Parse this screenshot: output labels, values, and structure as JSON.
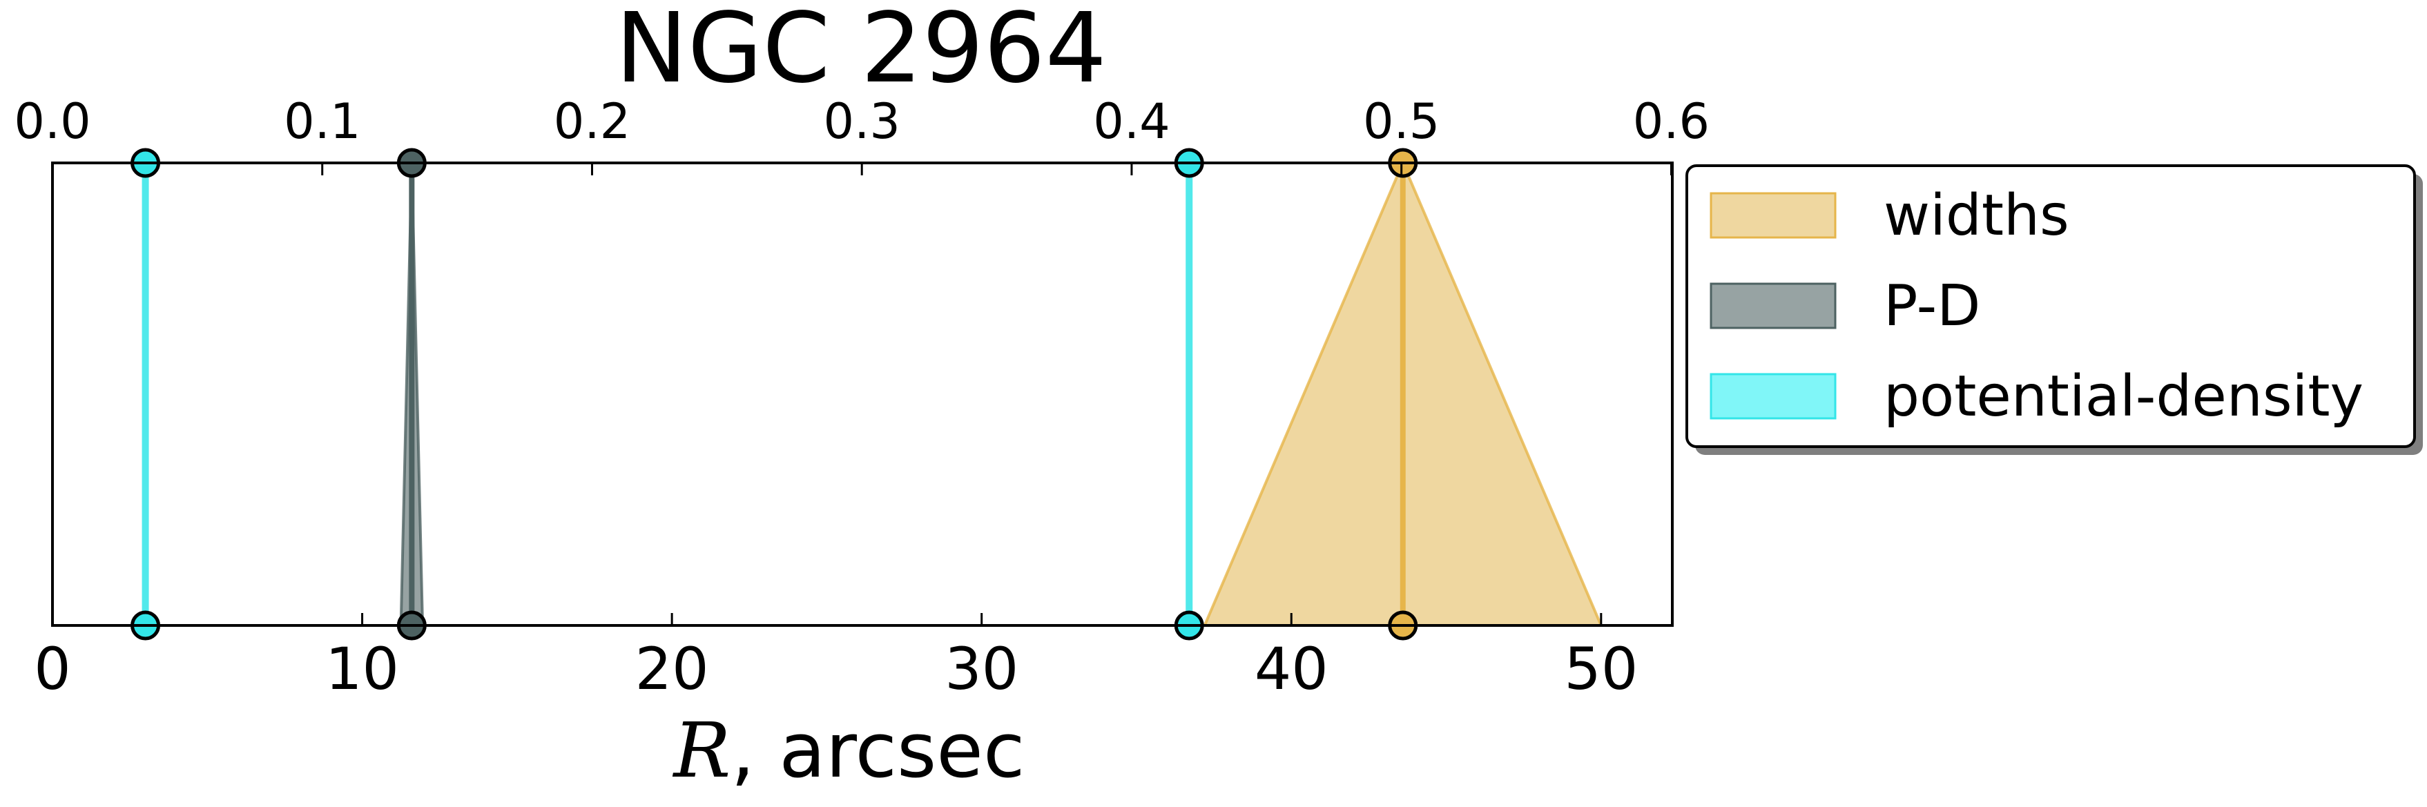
{
  "chart_data": {
    "type": "area",
    "title": "NGC 2964",
    "xlabel_var": "R",
    "xlabel_rest": ", arcsec",
    "xlim": [
      0,
      52.3
    ],
    "xticks": [
      0,
      10,
      20,
      30,
      40,
      50
    ],
    "xtick_labels": [
      "0",
      "10",
      "20",
      "30",
      "40",
      "50"
    ],
    "top_axis_scale": 0.01148,
    "top_ticks": [
      0.0,
      0.1,
      0.2,
      0.3,
      0.4,
      0.5,
      0.6
    ],
    "top_tick_labels": [
      "0.0",
      "0.1",
      "0.2",
      "0.3",
      "0.4",
      "0.5",
      "0.6"
    ],
    "grid": false,
    "legend_placement": "outside-right",
    "series": [
      {
        "name": "widths",
        "color": "#e6b54a",
        "fill_color": "#efd7a0",
        "peak": 43.6,
        "base_left": 37.2,
        "base_right": 50.0
      },
      {
        "name": "P-D",
        "color": "#4d6262",
        "fill_color": "#97a3a3",
        "peak": 11.6,
        "base_left": 11.25,
        "base_right": 11.95
      },
      {
        "name": "potential-density",
        "color": "#33e5e8",
        "fill_color": "#80f6f8",
        "values": [
          3.0,
          36.7
        ]
      }
    ]
  }
}
